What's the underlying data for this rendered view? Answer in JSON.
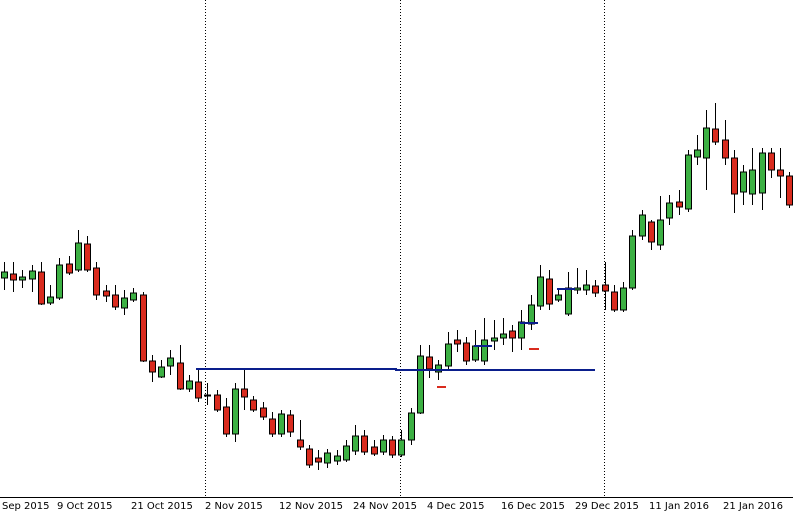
{
  "chart_data": {
    "type": "candlestick",
    "up_color": "#3cb043",
    "down_color": "#d92b1e",
    "ylim": [
      3,
      500
    ],
    "categories": [
      "Sep 2015",
      null,
      null,
      null,
      null,
      null,
      "9 Oct 2015",
      null,
      null,
      null,
      null,
      null,
      null,
      null,
      "21 Oct 2015",
      null,
      null,
      null,
      null,
      null,
      null,
      null,
      "2 Nov 2015",
      null,
      null,
      null,
      null,
      null,
      null,
      null,
      "12 Nov 2015",
      null,
      null,
      null,
      null,
      null,
      null,
      null,
      "24 Nov 2015",
      null,
      null,
      null,
      null,
      null,
      null,
      null,
      "4 Dec 2015",
      null,
      null,
      null,
      null,
      null,
      null,
      null,
      "16 Dec 2015",
      null,
      null,
      null,
      null,
      null,
      null,
      null,
      "29 Dec 2015",
      null,
      null,
      null,
      null,
      null,
      null,
      null,
      "11 Jan 2016",
      null,
      null,
      null,
      null,
      null,
      null,
      null,
      "21 Jan 2016",
      null,
      null,
      null,
      null,
      null,
      null,
      null
    ],
    "open": [
      222,
      226,
      220,
      221,
      228,
      197,
      202,
      236,
      230,
      256,
      232,
      209,
      205,
      192,
      200,
      205,
      139,
      123,
      134,
      137,
      111,
      118,
      105,
      105,
      93,
      66,
      111,
      100,
      92,
      81,
      66,
      85,
      60,
      51,
      42,
      37,
      39,
      40,
      49,
      64,
      53,
      48,
      60,
      45,
      60,
      87,
      143,
      128,
      134,
      160,
      157,
      140,
      139,
      159,
      162,
      169,
      162,
      176,
      194,
      221,
      200,
      186,
      210,
      210,
      214,
      215,
      208,
      190,
      212,
      264,
      278,
      255,
      282,
      298,
      291,
      343,
      342,
      371,
      360,
      342,
      308,
      306,
      307,
      347,
      330,
      324
    ],
    "high": [
      238,
      238,
      230,
      235,
      238,
      215,
      242,
      244,
      270,
      264,
      238,
      215,
      215,
      210,
      212,
      208,
      145,
      140,
      150,
      155,
      125,
      132,
      117,
      110,
      102,
      117,
      130,
      104,
      98,
      88,
      90,
      90,
      80,
      55,
      50,
      51,
      50,
      60,
      75,
      70,
      60,
      65,
      64,
      70,
      92,
      155,
      155,
      140,
      168,
      170,
      163,
      170,
      182,
      180,
      182,
      175,
      190,
      205,
      235,
      230,
      212,
      228,
      232,
      230,
      220,
      238,
      215,
      218,
      270,
      290,
      280,
      304,
      305,
      310,
      350,
      365,
      390,
      397,
      380,
      350,
      335,
      352,
      352,
      352,
      352,
      328
    ],
    "low": [
      210,
      208,
      212,
      208,
      195,
      195,
      200,
      225,
      228,
      228,
      200,
      198,
      190,
      185,
      198,
      138,
      118,
      122,
      125,
      110,
      108,
      98,
      95,
      88,
      63,
      58,
      90,
      88,
      80,
      63,
      63,
      63,
      50,
      32,
      30,
      32,
      35,
      38,
      45,
      45,
      44,
      45,
      42,
      43,
      55,
      86,
      122,
      120,
      130,
      148,
      135,
      138,
      135,
      150,
      155,
      148,
      150,
      170,
      190,
      190,
      198,
      184,
      206,
      205,
      203,
      190,
      188,
      188,
      210,
      260,
      250,
      250,
      275,
      285,
      288,
      335,
      310,
      355,
      335,
      287,
      295,
      295,
      290,
      322,
      302,
      292
    ],
    "close": [
      228,
      220,
      223,
      229,
      196,
      203,
      235,
      227,
      257,
      230,
      205,
      204,
      193,
      202,
      207,
      139,
      128,
      133,
      142,
      111,
      119,
      102,
      104,
      90,
      66,
      111,
      103,
      90,
      83,
      66,
      86,
      68,
      53,
      35,
      38,
      47,
      44,
      54,
      64,
      48,
      46,
      60,
      45,
      60,
      87,
      144,
      131,
      135,
      156,
      156,
      139,
      154,
      160,
      162,
      166,
      162,
      178,
      195,
      223,
      196,
      205,
      212,
      212,
      215,
      207,
      209,
      190,
      212,
      264,
      285,
      258,
      280,
      297,
      293,
      345,
      350,
      372,
      358,
      342,
      306,
      328,
      330,
      347,
      330,
      324,
      295
    ]
  }
}
